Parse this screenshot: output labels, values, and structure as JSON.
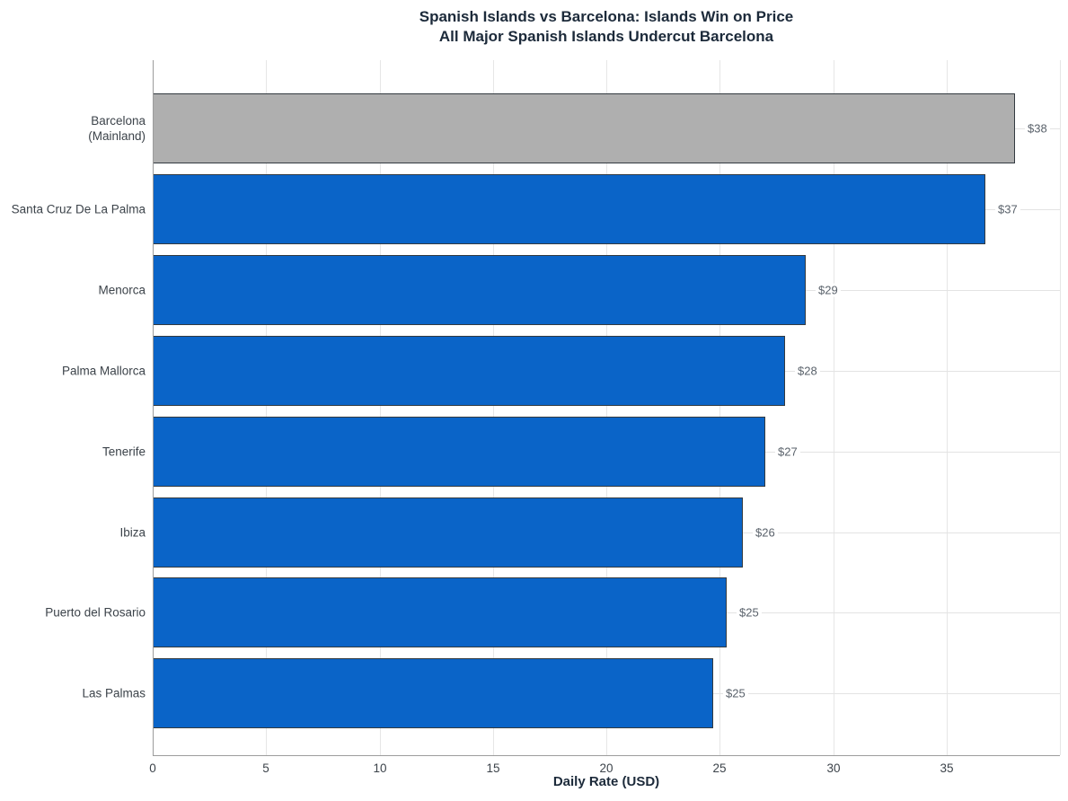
{
  "chart_data": {
    "type": "bar",
    "orientation": "horizontal",
    "title": "Spanish Islands vs Barcelona: Islands Win on Price",
    "subtitle": "All Major Spanish Islands Undercut Barcelona",
    "xlabel": "Daily Rate (USD)",
    "categories": [
      "Barcelona\n(Mainland)",
      "Santa Cruz De La Palma",
      "Menorca",
      "Palma Mallorca",
      "Tenerife",
      "Ibiza",
      "Puerto del Rosario",
      "Las Palmas"
    ],
    "values": [
      38,
      37,
      29,
      28,
      27,
      26,
      25,
      25
    ],
    "bar_lengths_estimated": [
      38.0,
      36.7,
      28.8,
      27.9,
      27.0,
      26.0,
      25.3,
      24.7
    ],
    "labels": [
      "$38",
      "$37",
      "$29",
      "$28",
      "$27",
      "$26",
      "$25",
      "$25"
    ],
    "bar_colors": [
      "#afafaf",
      "#0a64c8",
      "#0a64c8",
      "#0a64c8",
      "#0a64c8",
      "#0a64c8",
      "#0a64c8",
      "#0a64c8"
    ],
    "xlim": [
      0,
      40
    ],
    "xticks": [
      0,
      5,
      10,
      15,
      20,
      25,
      30,
      35
    ],
    "grid": true,
    "legend": "none"
  },
  "colors": {
    "island_blue": "#0a64c8",
    "mainland_gray": "#afafaf",
    "bar_border": "#333a40",
    "gridline": "#e4e4e4",
    "axis_line": "#9c9c9c",
    "title_text": "#1c2a3a",
    "tick_text": "#3c434a",
    "value_text": "#5a626b"
  }
}
